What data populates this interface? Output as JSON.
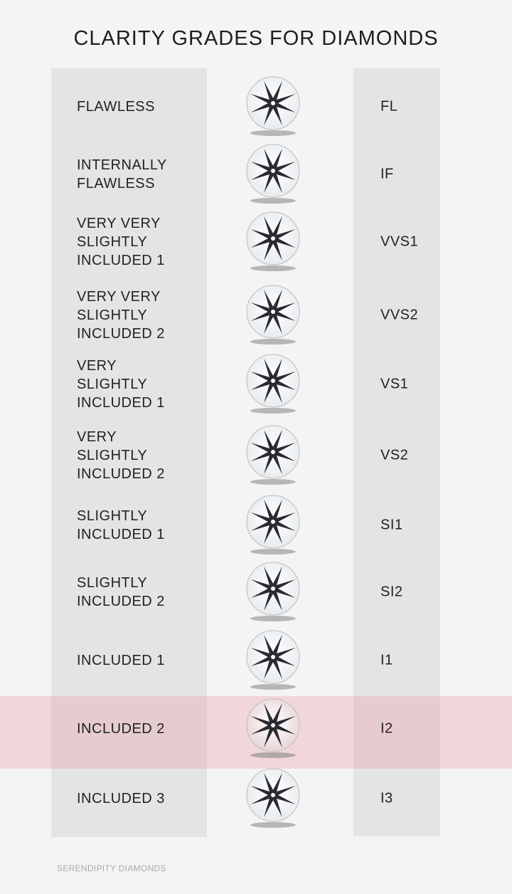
{
  "title": "CLARITY GRADES FOR DIAMONDS",
  "highlight_color": "#f0d4d8",
  "grades": [
    {
      "name": "FLAWLESS",
      "code": "FL"
    },
    {
      "name": "INTERNALLY\nFLAWLESS",
      "code": "IF"
    },
    {
      "name": "VERY VERY\nSLIGHTLY\nINCLUDED 1",
      "code": "VVS1"
    },
    {
      "name": "VERY VERY\nSLIGHTLY\nINCLUDED 2",
      "code": "VVS2"
    },
    {
      "name": "VERY\nSLIGHTLY\nINCLUDED 1",
      "code": "VS1"
    },
    {
      "name": "VERY\nSLIGHTLY\nINCLUDED 2",
      "code": "VS2"
    },
    {
      "name": "SLIGHTLY\nINCLUDED 1",
      "code": "SI1"
    },
    {
      "name": "SLIGHTLY\nINCLUDED 2",
      "code": "SI2"
    },
    {
      "name": "INCLUDED 1",
      "code": "I1"
    },
    {
      "name": "INCLUDED 2",
      "code": "I2",
      "highlighted": true
    },
    {
      "name": "INCLUDED 3",
      "code": "I3"
    }
  ],
  "footer": "SERENDIPITY DIAMONDS"
}
